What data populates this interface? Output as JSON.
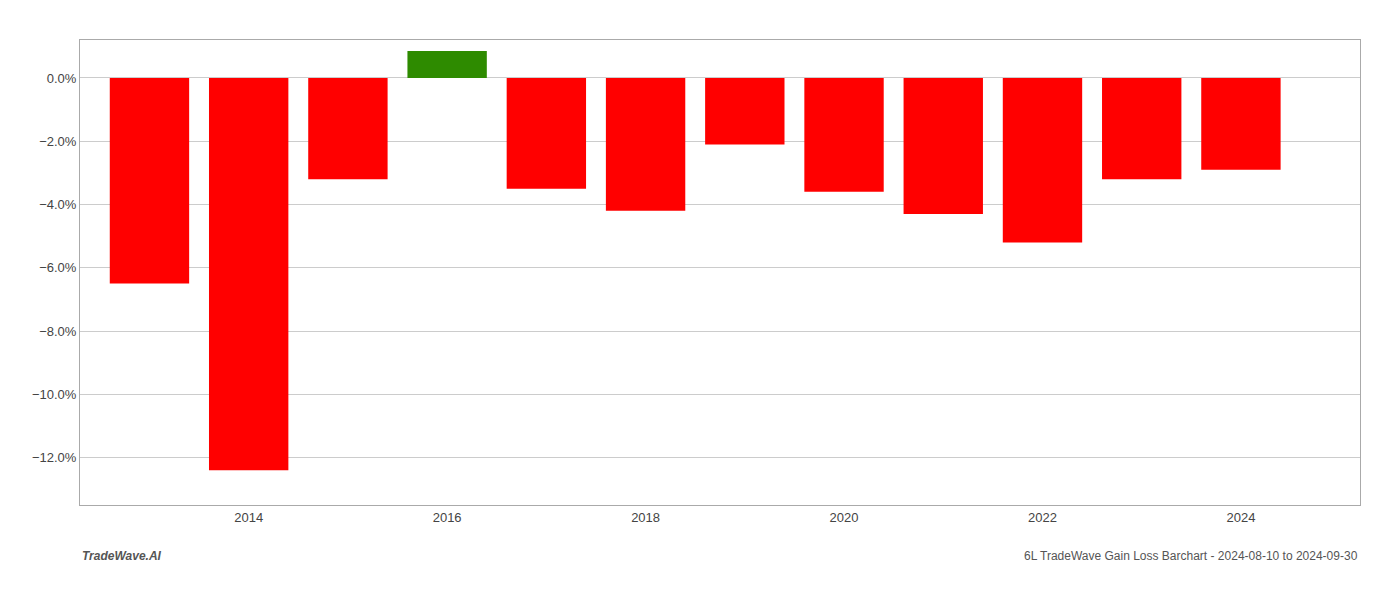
{
  "chart_data": {
    "type": "bar",
    "x": [
      2013,
      2014,
      2015,
      2016,
      2017,
      2018,
      2019,
      2020,
      2021,
      2022,
      2023,
      2024
    ],
    "values": [
      -6.5,
      -12.4,
      -3.2,
      0.85,
      -3.5,
      -4.2,
      -2.1,
      -3.6,
      -4.3,
      -5.2,
      -3.2,
      -2.9
    ],
    "colors": [
      "#ff0000",
      "#ff0000",
      "#ff0000",
      "#2e8b00",
      "#ff0000",
      "#ff0000",
      "#ff0000",
      "#ff0000",
      "#ff0000",
      "#ff0000",
      "#ff0000",
      "#ff0000"
    ],
    "xlim": [
      2012.3,
      2025.2
    ],
    "xticks": [
      2014,
      2016,
      2018,
      2020,
      2022,
      2024
    ],
    "ylim": [
      -13.5,
      1.2
    ],
    "yticks": [
      {
        "value": 0.0,
        "label": "0.0%"
      },
      {
        "value": -2.0,
        "label": "−2.0%"
      },
      {
        "value": -4.0,
        "label": "−4.0%"
      },
      {
        "value": -6.0,
        "label": "−6.0%"
      },
      {
        "value": -8.0,
        "label": "−8.0%"
      },
      {
        "value": -10.0,
        "label": "−10.0%"
      },
      {
        "value": -12.0,
        "label": "−12.0%"
      }
    ],
    "grid": "y",
    "annotations": [
      "TradeWave.AI",
      "6L TradeWave Gain Loss Barchart - 2024-08-10 to 2024-09-30"
    ]
  }
}
